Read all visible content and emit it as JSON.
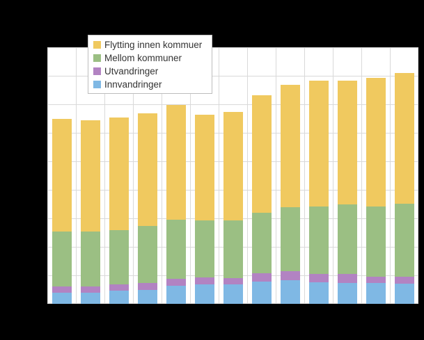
{
  "figure": {
    "background_color": "#000000",
    "plot_background_color": "#ffffff",
    "gridline_color": "#d9d9d9"
  },
  "legend": {
    "items": [
      {
        "label": "Flytting innen kommuer",
        "color": "#F0C95F",
        "icon": "legend-swatch-yellow"
      },
      {
        "label": "Mellom kommuner",
        "color": "#9BBF83",
        "icon": "legend-swatch-green"
      },
      {
        "label": "Utvandringer",
        "color": "#B283C2",
        "icon": "legend-swatch-purple"
      },
      {
        "label": "Innvandringer",
        "color": "#7FB8E4",
        "icon": "legend-swatch-blue"
      }
    ]
  },
  "chart_data": {
    "type": "bar",
    "stacked": true,
    "orientation": "vertical",
    "title": "",
    "xlabel": "",
    "ylabel": "",
    "n_bars": 13,
    "categories": [
      "",
      "",
      "",
      "",
      "",
      "",
      "",
      "",
      "",
      "",
      "",
      "",
      ""
    ],
    "tick_labels_visible": false,
    "ylim": [
      0,
      90
    ],
    "value_units": "estimated unlabeled gridline units (1 horizontal gridline interval = 10)",
    "legend_position": "top-left",
    "grid": {
      "horizontal_lines": 10,
      "vertical_lines": 14
    },
    "series": [
      {
        "name": "Innvandringer",
        "color": "#7FB8E4",
        "values": [
          3.9,
          3.9,
          4.6,
          5.0,
          6.4,
          6.8,
          6.8,
          7.8,
          8.2,
          7.6,
          7.4,
          7.2,
          7.0
        ]
      },
      {
        "name": "Utvandringer",
        "color": "#B283C2",
        "values": [
          2.3,
          2.1,
          2.3,
          2.2,
          2.4,
          2.4,
          2.2,
          2.9,
          3.2,
          2.8,
          3.0,
          2.4,
          2.6
        ]
      },
      {
        "name": "Mellom kommuner",
        "color": "#9BBF83",
        "values": [
          19.2,
          19.3,
          18.9,
          20.0,
          20.8,
          20.0,
          20.3,
          21.3,
          22.4,
          23.8,
          24.5,
          24.5,
          25.5
        ]
      },
      {
        "name": "Flytting innen kommuer",
        "color": "#F0C95F",
        "values": [
          39.5,
          39.2,
          39.5,
          39.7,
          40.1,
          37.2,
          38.1,
          41.2,
          43.1,
          44.0,
          43.3,
          45.1,
          46.0
        ]
      }
    ]
  }
}
